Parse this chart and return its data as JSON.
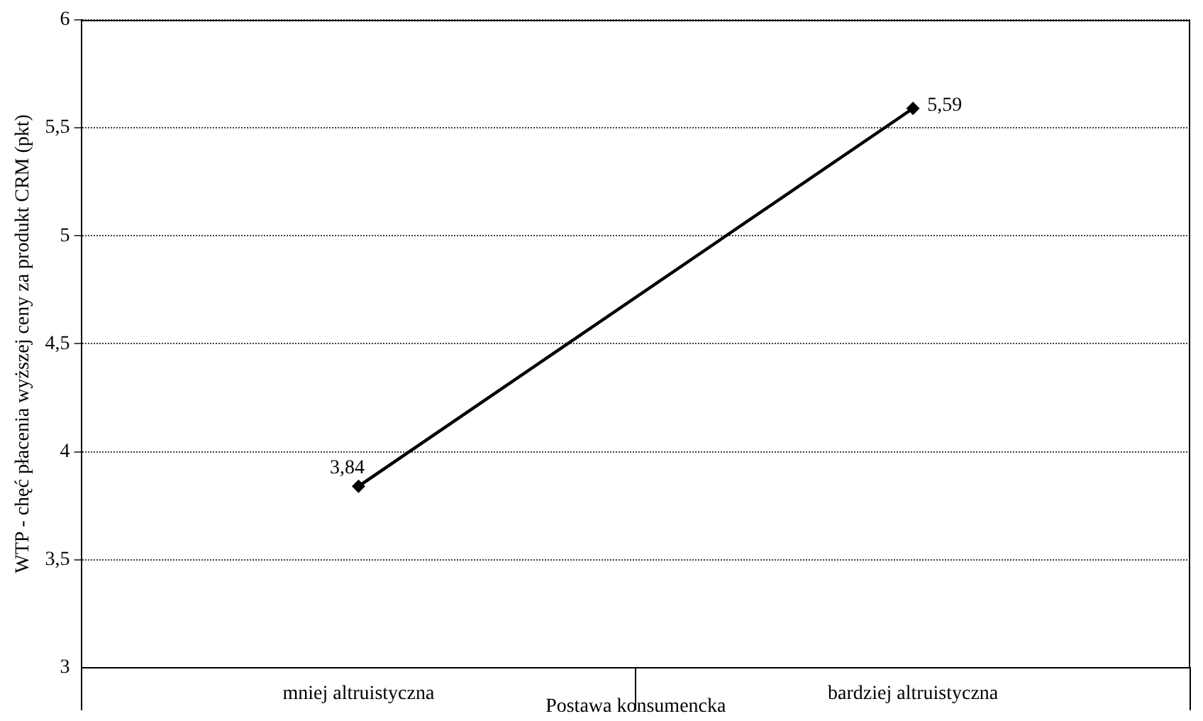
{
  "chart_data": {
    "type": "line",
    "xlabel": "Postawa konsumencka",
    "ylabel": "WTP - chęć płacenia wyższej ceny za produkt CRM (pkt)",
    "categories": [
      "mniej altruistyczna",
      "bardziej altruistyczna"
    ],
    "series": [
      {
        "color": "#000000",
        "values": [
          3.84,
          5.59
        ],
        "value_labels": [
          "3,84",
          "5,59"
        ]
      }
    ],
    "ylim": [
      3,
      6
    ],
    "yticks": [
      3,
      {
        "value": 3.5,
        "label": "3,5"
      },
      4,
      {
        "value": 4.5,
        "label": "4,5"
      },
      5,
      {
        "value": 5.5,
        "label": "5,5"
      },
      6
    ],
    "grid": "y",
    "legend": false,
    "marker": "diamond",
    "line_style": "solid"
  }
}
